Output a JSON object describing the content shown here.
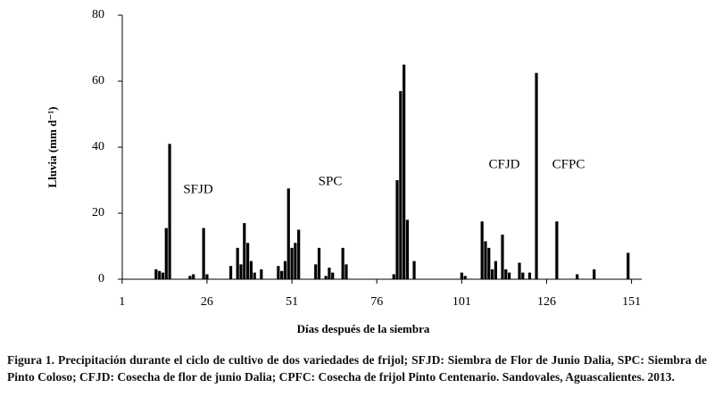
{
  "chart_data": {
    "type": "bar",
    "y_label": "Lluvia (mm d⁻¹)",
    "x_label": "Días después de la siembra",
    "caption": "Figura 1. Precipitación durante el ciclo de cultivo de dos variedades de frijol; SFJD: Siembra de Flor de Junio Dalia, SPC: Siembra de Pinto Coloso; CFJD: Cosecha de flor de junio Dalia; CPFC: Cosecha de frijol Pinto Centenario. Sandovales, Aguascalientes. 2013.",
    "annotations": [
      "SFJD",
      "SPC",
      "CFJD",
      "CFPC"
    ],
    "color": "#000000",
    "x": [
      11,
      12,
      13,
      14,
      15,
      21,
      22,
      25,
      26,
      33,
      35,
      36,
      37,
      38,
      39,
      40,
      42,
      47,
      48,
      49,
      50,
      51,
      52,
      53,
      58,
      59,
      61,
      62,
      63,
      66,
      67,
      81,
      82,
      83,
      84,
      85,
      87,
      101,
      102,
      107,
      108,
      109,
      110,
      111,
      113,
      114,
      115,
      118,
      119,
      121,
      123,
      129,
      135,
      140,
      150
    ],
    "values": [
      3,
      2.5,
      2,
      15.5,
      41,
      1,
      1.5,
      15.5,
      1.5,
      4,
      9.5,
      4.5,
      17,
      11,
      5.5,
      2,
      3,
      4,
      2.5,
      5.5,
      27.5,
      9.5,
      11,
      15,
      4.5,
      9.5,
      1,
      3.5,
      2,
      9.5,
      4.5,
      1.5,
      30,
      57,
      65,
      18,
      5.5,
      2,
      1,
      17.5,
      11.5,
      9.5,
      3,
      5.5,
      13.5,
      3,
      2,
      5,
      2,
      2,
      62.5,
      17.5,
      1.5,
      3,
      8
    ],
    "xlim": [
      0,
      154
    ],
    "xticks": [
      1,
      26,
      51,
      76,
      101,
      126,
      151
    ],
    "ylim": [
      0,
      80
    ],
    "yticks": [
      0,
      20,
      40,
      60,
      80
    ]
  }
}
